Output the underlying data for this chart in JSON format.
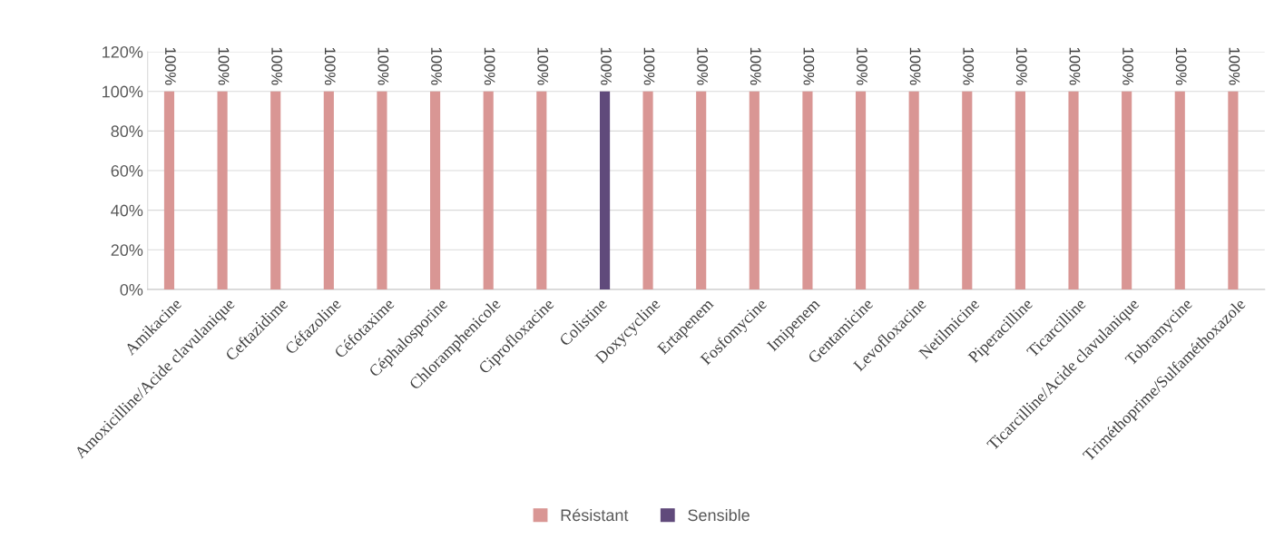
{
  "chart_data": {
    "type": "bar",
    "categories": [
      "Amikacine",
      "Amoxicilline/Acide clavulanique",
      "Ceftazidime",
      "Céfazoline",
      "Céfotaxime",
      "Céphalosporine",
      "Chloramphenicole",
      "Ciprofloxacine",
      "Colistine",
      "Doxycycline",
      "Ertapenem",
      "Fosfomycine",
      "Imipenem",
      "Gentamicine",
      "Levofloxacine",
      "Netilmicine",
      "Piperacilline",
      "Ticarcilline",
      "Ticarcilline/Acide clavulanique",
      "Tobramycine",
      "Triméthoprime/Sulfaméthoxazole"
    ],
    "series": [
      {
        "name": "Résistant",
        "color": "#d99694",
        "values": [
          100,
          100,
          100,
          100,
          100,
          100,
          100,
          100,
          null,
          100,
          100,
          100,
          100,
          100,
          100,
          100,
          100,
          100,
          100,
          100,
          100
        ],
        "value_labels": [
          "100%",
          "100%",
          "100%",
          "100%",
          "100%",
          "100%",
          "100%",
          "100%",
          null,
          "100%",
          "100%",
          "100%",
          "100%",
          "100%",
          "100%",
          "100%",
          "100%",
          "100%",
          "100%",
          "100%",
          "100%"
        ]
      },
      {
        "name": "Sensible",
        "color": "#604a7b",
        "values": [
          null,
          null,
          null,
          null,
          null,
          null,
          null,
          null,
          100,
          null,
          null,
          null,
          null,
          null,
          null,
          null,
          null,
          null,
          null,
          null,
          null
        ],
        "value_labels": [
          null,
          null,
          null,
          null,
          null,
          null,
          null,
          null,
          "100%",
          null,
          null,
          null,
          null,
          null,
          null,
          null,
          null,
          null,
          null,
          null,
          null
        ]
      }
    ],
    "ylim": [
      0,
      120
    ],
    "yticks": [
      {
        "value": 0,
        "label": "0%"
      },
      {
        "value": 20,
        "label": "20%"
      },
      {
        "value": 40,
        "label": "40%"
      },
      {
        "value": 60,
        "label": "60%"
      },
      {
        "value": 80,
        "label": "80%"
      },
      {
        "value": 100,
        "label": "100%"
      },
      {
        "value": 120,
        "label": "120%"
      }
    ],
    "grid": "y",
    "legend": "bottom"
  }
}
